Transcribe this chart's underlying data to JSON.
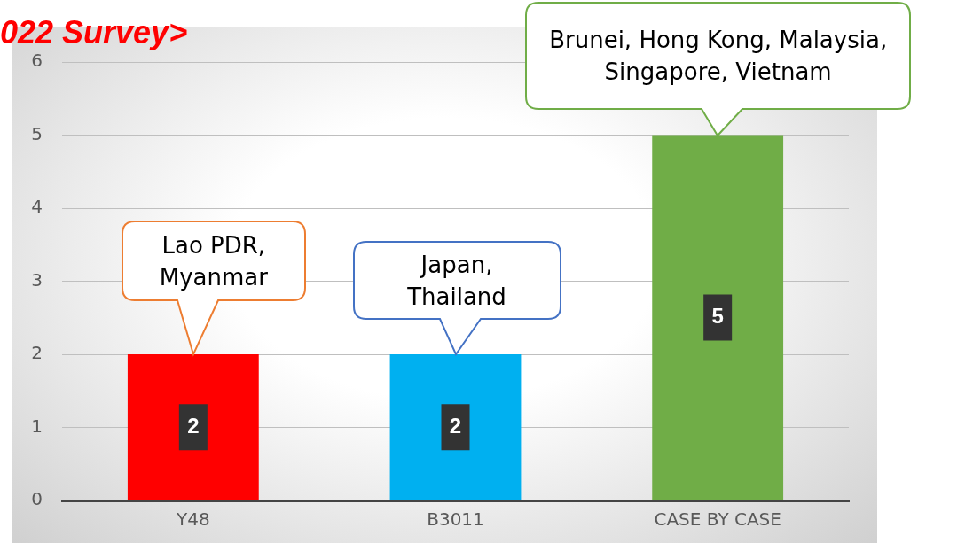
{
  "chart_data": {
    "type": "bar",
    "title": "022 Survey>",
    "categories": [
      "Y48",
      "B3011",
      "CASE BY CASE"
    ],
    "values": [
      2,
      2,
      5
    ],
    "colors": [
      "#ff0000",
      "#00b0f0",
      "#70ad47"
    ],
    "ylim": [
      0,
      6
    ],
    "yticks": [
      0,
      1,
      2,
      3,
      4,
      5,
      6
    ],
    "grid": "y",
    "data_labels": true,
    "legend": false,
    "annotations": [
      {
        "text": "Lao PDR,\nMyanmar",
        "x": "Y48",
        "y": 2
      },
      {
        "text": "Japan,\nThailand",
        "x": "B3011",
        "y": 2
      },
      {
        "text": "Brunei, Hong Kong, Malaysia,\nSingapore, Vietnam",
        "x": "CASE BY CASE",
        "y": 5
      }
    ]
  }
}
